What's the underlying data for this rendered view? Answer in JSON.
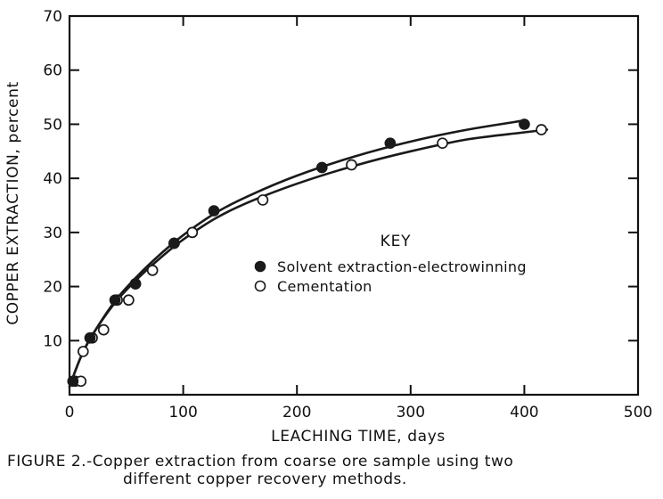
{
  "chart_data": {
    "type": "scatter",
    "xlabel": "LEACHING TIME, days",
    "ylabel": "COPPER EXTRACTION, percent",
    "xlim": [
      0,
      500
    ],
    "ylim": [
      0,
      70
    ],
    "xticks": [
      "0",
      "100",
      "200",
      "300",
      "400",
      "500"
    ],
    "yticks": [
      "10",
      "20",
      "30",
      "40",
      "50",
      "60",
      "70"
    ],
    "grid": false,
    "legend_title": "KEY",
    "legend_position": "center-right",
    "series": [
      {
        "name": "Solvent extraction-electrowinning",
        "marker": "filled-circle",
        "color": "#1a1a1a",
        "points": [
          [
            3,
            2.5
          ],
          [
            18,
            10.5
          ],
          [
            40,
            17.5
          ],
          [
            58,
            20.5
          ],
          [
            92,
            28
          ],
          [
            127,
            34
          ],
          [
            222,
            42
          ],
          [
            282,
            46.5
          ],
          [
            400,
            50
          ]
        ],
        "fit_curve": [
          [
            0,
            1.5
          ],
          [
            10,
            7
          ],
          [
            20,
            11
          ],
          [
            40,
            17.3
          ],
          [
            60,
            22
          ],
          [
            80,
            26
          ],
          [
            100,
            29.5
          ],
          [
            130,
            33.8
          ],
          [
            160,
            37
          ],
          [
            200,
            40.5
          ],
          [
            250,
            44
          ],
          [
            300,
            46.8
          ],
          [
            350,
            49
          ],
          [
            400,
            50.7
          ]
        ]
      },
      {
        "name": "Cementation",
        "marker": "open-circle",
        "color": "#1a1a1a",
        "points": [
          [
            5,
            2.5
          ],
          [
            10,
            2.5
          ],
          [
            12,
            8
          ],
          [
            20,
            10.5
          ],
          [
            30,
            12
          ],
          [
            42,
            17.5
          ],
          [
            52,
            17.5
          ],
          [
            58,
            20.5
          ],
          [
            73,
            23
          ],
          [
            92,
            28
          ],
          [
            108,
            30
          ],
          [
            170,
            36
          ],
          [
            248,
            42.5
          ],
          [
            328,
            46.5
          ],
          [
            415,
            49
          ]
        ],
        "fit_curve": [
          [
            0,
            1.5
          ],
          [
            10,
            7
          ],
          [
            20,
            11
          ],
          [
            40,
            17
          ],
          [
            60,
            21.5
          ],
          [
            80,
            25.3
          ],
          [
            100,
            28.7
          ],
          [
            130,
            32.8
          ],
          [
            160,
            35.8
          ],
          [
            200,
            39
          ],
          [
            250,
            42.3
          ],
          [
            300,
            45
          ],
          [
            350,
            47.2
          ],
          [
            400,
            48.5
          ],
          [
            420,
            49
          ]
        ]
      }
    ]
  },
  "caption": {
    "line1": "FIGURE 2.-Copper extraction from coarse ore sample using two",
    "line2": "different copper recovery methods."
  }
}
